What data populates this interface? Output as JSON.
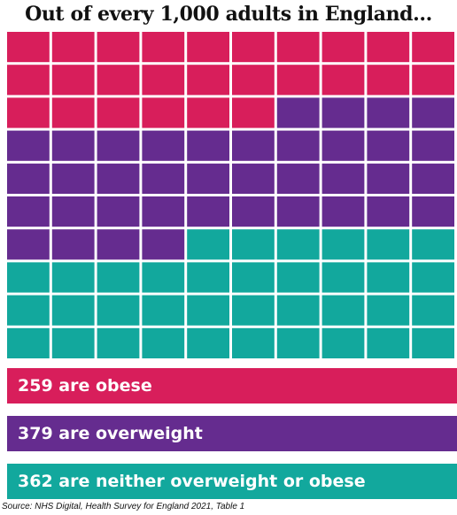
{
  "title": "Out of every 1,000 adults in England...",
  "source": "Source: NHS Digital, Health Survey for England 2021, Table 1",
  "colors": {
    "obese": "#d81e5b",
    "overweight": "#652c8f",
    "neither": "#12a89d"
  },
  "chart_data": {
    "type": "waffle",
    "total": 1000,
    "grid": {
      "rows": 10,
      "cols": 10,
      "unit_per_cell": 10
    },
    "fill_order": "row-major from top-left",
    "categories": [
      {
        "label": "259 are obese",
        "value": 259,
        "cells": 26,
        "color": "#d81e5b"
      },
      {
        "label": "379 are overweight",
        "value": 379,
        "cells": 38,
        "color": "#652c8f"
      },
      {
        "label": "362 are neither overweight or obese",
        "value": 362,
        "cells": 36,
        "color": "#12a89d"
      }
    ]
  }
}
